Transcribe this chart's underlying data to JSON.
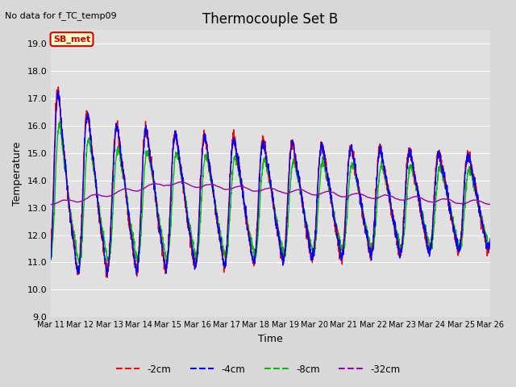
{
  "title": "Thermocouple Set B",
  "top_left_text": "No data for f_TC_temp09",
  "xlabel": "Time",
  "ylabel": "Temperature",
  "ylim": [
    9.0,
    19.5
  ],
  "yticks": [
    9.0,
    10.0,
    11.0,
    12.0,
    13.0,
    14.0,
    15.0,
    16.0,
    17.0,
    18.0,
    19.0
  ],
  "bg_color": "#e0e0e0",
  "grid_color": "#ffffff",
  "series_colors": {
    "-2cm": "#ff0000",
    "-4cm": "#0000ff",
    "-8cm": "#00bb00",
    "-32cm": "#9900aa"
  },
  "annotation_box": {
    "text": "SB_met",
    "facecolor": "#ffffcc",
    "edgecolor": "#cc0000",
    "textcolor": "#cc0000"
  },
  "x_tick_labels": [
    "Mar 11",
    "Mar 12",
    "Mar 13",
    "Mar 14",
    "Mar 15",
    "Mar 16",
    "Mar 17",
    "Mar 18",
    "Mar 19",
    "Mar 20",
    "Mar 21",
    "Mar 22",
    "Mar 23",
    "Mar 24",
    "Mar 25",
    "Mar 26"
  ],
  "line_width": 1.0,
  "figsize": [
    6.4,
    4.8
  ],
  "dpi": 100
}
